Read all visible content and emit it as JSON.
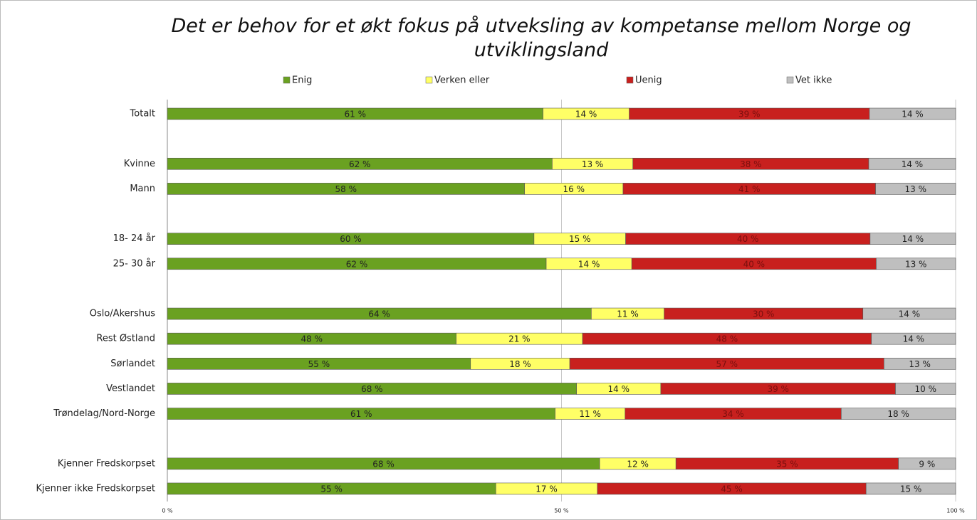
{
  "chart_data": {
    "type": "bar",
    "orientation": "horizontal",
    "stacked": "percent",
    "title": "Det er behov for et økt fokus på utveksling av kompetanse mellom Norge og utviklingsland",
    "categories": [
      "Totalt",
      null,
      "Kvinne",
      "Mann",
      null,
      "18- 24 år",
      "25- 30 år",
      null,
      "Oslo/Akershus",
      "Rest Østland",
      "Sørlandet",
      "Vestlandet",
      "Trøndelag/Nord-Norge",
      null,
      "Kjenner Fredskorpset",
      "Kjenner ikke Fredskorpset"
    ],
    "series": [
      {
        "name": "Enig",
        "color": "#6aa121",
        "values": [
          61,
          null,
          62,
          58,
          null,
          60,
          62,
          null,
          64,
          48,
          55,
          68,
          61,
          null,
          68,
          55
        ],
        "value_labels": [
          "61 %",
          null,
          "62 %",
          "58 %",
          null,
          "60 %",
          "62 %",
          null,
          "64 %",
          "48 %",
          "55 %",
          "68 %",
          "61 %",
          null,
          "68 %",
          "55 %"
        ]
      },
      {
        "name": "Verken eller",
        "color": "#ffff66",
        "values": [
          14,
          null,
          13,
          16,
          null,
          15,
          14,
          null,
          11,
          21,
          18,
          14,
          11,
          null,
          12,
          17
        ],
        "value_labels": [
          "14 %",
          null,
          "13 %",
          "16 %",
          null,
          "15 %",
          "14 %",
          null,
          "11 %",
          "21 %",
          "18 %",
          "14 %",
          "11 %",
          null,
          "12 %",
          "17 %"
        ]
      },
      {
        "name": "Uenig",
        "color": "#c8201e",
        "values": [
          39,
          null,
          38,
          41,
          null,
          40,
          40,
          null,
          30,
          48,
          57,
          39,
          34,
          null,
          35,
          45
        ],
        "value_labels": [
          "39 %",
          null,
          "38 %",
          "41 %",
          null,
          "40 %",
          "40 %",
          null,
          "30 %",
          "48 %",
          "57 %",
          "39 %",
          "34 %",
          null,
          "35 %",
          "45 %"
        ]
      },
      {
        "name": "Vet ikke",
        "color": "#bfbfbf",
        "values": [
          14,
          null,
          14,
          13,
          null,
          14,
          13,
          null,
          14,
          14,
          13,
          10,
          18,
          null,
          9,
          15
        ],
        "value_labels": [
          "14 %",
          null,
          "14 %",
          "13 %",
          null,
          "14 %",
          "13 %",
          null,
          "14 %",
          "14 %",
          "13 %",
          "10 %",
          "18 %",
          null,
          "9 %",
          "15 %"
        ]
      }
    ],
    "xlim": [
      0,
      100
    ],
    "xticks": [
      {
        "value": 0,
        "label": "0 %"
      },
      {
        "value": 50,
        "label": "50 %"
      },
      {
        "value": 100,
        "label": "100 %"
      }
    ],
    "grid": true,
    "legend": "top"
  }
}
